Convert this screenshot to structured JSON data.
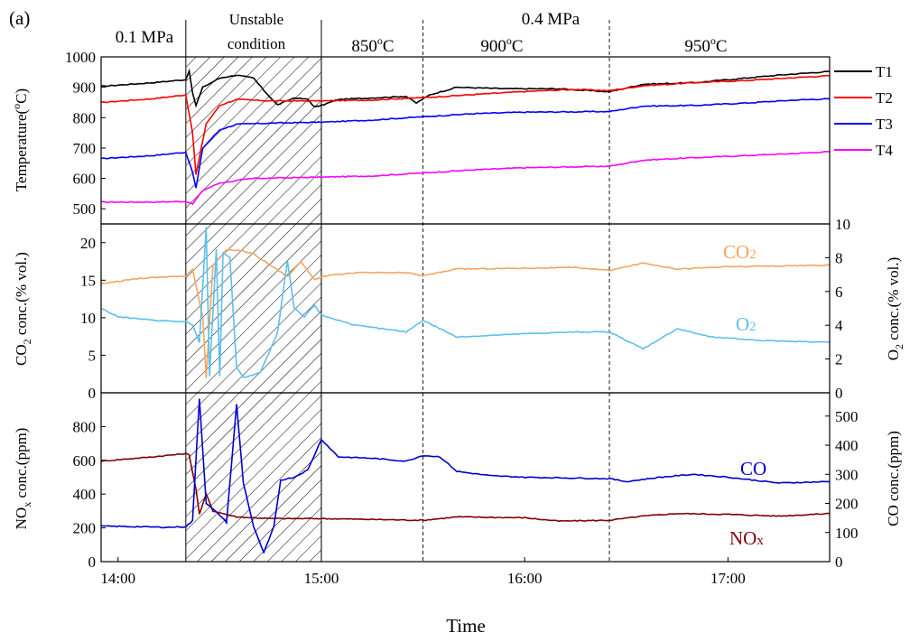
{
  "figure_label": "(a)",
  "chart_data": {
    "type": "line",
    "x_ticks": [
      "14:00",
      "15:00",
      "16:00",
      "17:00"
    ],
    "x_range": [
      "13:55",
      "17:30"
    ],
    "x_label": "Time",
    "header": {
      "pressure_left": "0.1 MPa",
      "unstable_line1": "Unstable",
      "unstable_line2": "condition",
      "pressure_right": "0.4 MPa"
    },
    "phases": [
      {
        "label": "850°C",
        "base": "850",
        "sup": "o",
        "after": "C"
      },
      {
        "label": "900°C",
        "base": "900",
        "sup": "o",
        "after": "C"
      },
      {
        "label": "950°C",
        "base": "950",
        "sup": "o",
        "after": "C"
      }
    ],
    "unstable_region": [
      "14:20",
      "15:00"
    ],
    "phase_boundaries": [
      "15:00",
      "15:30",
      "16:25"
    ],
    "panels": [
      {
        "id": "temperature",
        "ylabel_left": "Temperature(°C)",
        "ylabel_left_parts": {
          "base": "Temperature(",
          "sup": "o",
          "after": "C)"
        },
        "ylim_left": [
          450,
          1000
        ],
        "yticks_left": [
          500,
          600,
          700,
          800,
          900,
          1000
        ],
        "series": [
          {
            "name": "T1",
            "color": "#000000",
            "axis": "left",
            "points": [
              [
                "13:55",
                903
              ],
              [
                "14:10",
                915
              ],
              [
                "14:20",
                925
              ],
              [
                "14:21",
                955
              ],
              [
                "14:22",
                880
              ],
              [
                "14:23",
                840
              ],
              [
                "14:25",
                900
              ],
              [
                "14:30",
                930
              ],
              [
                "14:35",
                940
              ],
              [
                "14:40",
                930
              ],
              [
                "14:43",
                890
              ],
              [
                "14:47",
                842
              ],
              [
                "14:52",
                865
              ],
              [
                "14:56",
                860
              ],
              [
                "14:58",
                835
              ],
              [
                "15:00",
                840
              ],
              [
                "15:05",
                860
              ],
              [
                "15:15",
                865
              ],
              [
                "15:25",
                870
              ],
              [
                "15:28",
                848
              ],
              [
                "15:32",
                875
              ],
              [
                "15:40",
                900
              ],
              [
                "15:55",
                895
              ],
              [
                "16:10",
                895
              ],
              [
                "16:25",
                885
              ],
              [
                "16:35",
                910
              ],
              [
                "16:50",
                915
              ],
              [
                "17:00",
                925
              ],
              [
                "17:15",
                940
              ],
              [
                "17:30",
                952
              ]
            ]
          },
          {
            "name": "T2",
            "color": "#ff0000",
            "axis": "left",
            "points": [
              [
                "13:55",
                850
              ],
              [
                "14:10",
                862
              ],
              [
                "14:20",
                875
              ],
              [
                "14:22",
                750
              ],
              [
                "14:23",
                612
              ],
              [
                "14:26",
                780
              ],
              [
                "14:30",
                840
              ],
              [
                "14:35",
                860
              ],
              [
                "14:45",
                855
              ],
              [
                "15:00",
                855
              ],
              [
                "15:15",
                858
              ],
              [
                "15:30",
                866
              ],
              [
                "15:45",
                876
              ],
              [
                "16:00",
                886
              ],
              [
                "16:15",
                893
              ],
              [
                "16:25",
                889
              ],
              [
                "16:35",
                905
              ],
              [
                "16:50",
                915
              ],
              [
                "17:05",
                922
              ],
              [
                "17:20",
                932
              ],
              [
                "17:30",
                938
              ]
            ]
          },
          {
            "name": "T3",
            "color": "#0000ff",
            "axis": "left",
            "points": [
              [
                "13:55",
                665
              ],
              [
                "14:10",
                675
              ],
              [
                "14:20",
                686
              ],
              [
                "14:22",
                620
              ],
              [
                "14:23",
                568
              ],
              [
                "14:25",
                700
              ],
              [
                "14:30",
                760
              ],
              [
                "14:35",
                778
              ],
              [
                "14:45",
                782
              ],
              [
                "15:00",
                785
              ],
              [
                "15:15",
                792
              ],
              [
                "15:30",
                803
              ],
              [
                "15:45",
                813
              ],
              [
                "16:00",
                818
              ],
              [
                "16:25",
                820
              ],
              [
                "16:35",
                838
              ],
              [
                "16:50",
                840
              ],
              [
                "17:05",
                848
              ],
              [
                "17:20",
                858
              ],
              [
                "17:30",
                862
              ]
            ]
          },
          {
            "name": "T4",
            "color": "#ff00ff",
            "axis": "left",
            "points": [
              [
                "13:55",
                522
              ],
              [
                "14:10",
                522
              ],
              [
                "14:20",
                524
              ],
              [
                "14:22",
                516
              ],
              [
                "14:25",
                560
              ],
              [
                "14:30",
                585
              ],
              [
                "14:40",
                600
              ],
              [
                "15:00",
                604
              ],
              [
                "15:15",
                608
              ],
              [
                "15:30",
                618
              ],
              [
                "15:45",
                628
              ],
              [
                "16:00",
                635
              ],
              [
                "16:25",
                640
              ],
              [
                "16:35",
                660
              ],
              [
                "16:50",
                668
              ],
              [
                "17:05",
                675
              ],
              [
                "17:20",
                682
              ],
              [
                "17:30",
                688
              ]
            ]
          }
        ]
      },
      {
        "id": "gas",
        "ylabel_left": "CO2 conc.(% vol.)",
        "ylabel_right": "O2 conc.(% vol.)",
        "ylim_left": [
          0,
          22.5
        ],
        "yticks_left": [
          0,
          5,
          10,
          15,
          20
        ],
        "ylim_right": [
          0,
          10
        ],
        "yticks_right": [
          0,
          2,
          4,
          6,
          8,
          10
        ],
        "series": [
          {
            "name": "CO2",
            "label": "CO2",
            "color": "#f4a461",
            "axis": "left",
            "points": [
              [
                "13:55",
                14.5
              ],
              [
                "14:05",
                15.2
              ],
              [
                "14:15",
                15.5
              ],
              [
                "14:20",
                15.5
              ],
              [
                "14:22",
                16.5
              ],
              [
                "14:25",
                10
              ],
              [
                "14:26",
                2
              ],
              [
                "14:28",
                17
              ],
              [
                "14:32",
                19
              ],
              [
                "14:36",
                19
              ],
              [
                "14:40",
                18.5
              ],
              [
                "14:45",
                17
              ],
              [
                "14:50",
                15.5
              ],
              [
                "14:54",
                17.5
              ],
              [
                "14:58",
                15
              ],
              [
                "15:00",
                15.5
              ],
              [
                "15:10",
                16
              ],
              [
                "15:25",
                16
              ],
              [
                "15:30",
                15.6
              ],
              [
                "15:40",
                16.5
              ],
              [
                "16:00",
                16.6
              ],
              [
                "16:15",
                16.7
              ],
              [
                "16:25",
                16.3
              ],
              [
                "16:35",
                17.3
              ],
              [
                "16:45",
                16.5
              ],
              [
                "17:00",
                16.8
              ],
              [
                "17:30",
                17
              ]
            ]
          },
          {
            "name": "O2",
            "label": "O2",
            "color": "#5bc0eb",
            "axis": "right",
            "points": [
              [
                "13:55",
                5.0
              ],
              [
                "14:00",
                4.5
              ],
              [
                "14:10",
                4.3
              ],
              [
                "14:20",
                4.2
              ],
              [
                "14:22",
                4.0
              ],
              [
                "14:24",
                3.0
              ],
              [
                "14:26",
                9.8
              ],
              [
                "14:27",
                1.0
              ],
              [
                "14:29",
                8.5
              ],
              [
                "14:30",
                1.0
              ],
              [
                "14:31",
                8.3
              ],
              [
                "14:33",
                8.0
              ],
              [
                "14:35",
                1.5
              ],
              [
                "14:37",
                0.9
              ],
              [
                "14:42",
                1.2
              ],
              [
                "14:47",
                3.5
              ],
              [
                "14:50",
                7.8
              ],
              [
                "14:52",
                5.0
              ],
              [
                "14:55",
                4.5
              ],
              [
                "14:58",
                5.2
              ],
              [
                "15:00",
                4.6
              ],
              [
                "15:10",
                4.0
              ],
              [
                "15:25",
                3.6
              ],
              [
                "15:30",
                4.3
              ],
              [
                "15:40",
                3.3
              ],
              [
                "16:00",
                3.5
              ],
              [
                "16:15",
                3.6
              ],
              [
                "16:25",
                3.6
              ],
              [
                "16:35",
                2.6
              ],
              [
                "16:45",
                3.8
              ],
              [
                "16:55",
                3.3
              ],
              [
                "17:10",
                3.1
              ],
              [
                "17:30",
                3.0
              ]
            ]
          }
        ]
      },
      {
        "id": "emissions",
        "ylabel_left": "NOx conc.(ppm)",
        "ylabel_right": "CO conc.(ppm)",
        "ylim_left": [
          0,
          1000
        ],
        "yticks_left": [
          0,
          200,
          400,
          600,
          800
        ],
        "ylim_right": [
          0,
          580
        ],
        "yticks_right": [
          0,
          100,
          200,
          300,
          400,
          500
        ],
        "series": [
          {
            "name": "NOx",
            "label": "NOx",
            "color": "#800000",
            "axis": "left",
            "points": [
              [
                "13:55",
                595
              ],
              [
                "14:10",
                620
              ],
              [
                "14:20",
                640
              ],
              [
                "14:21",
                630
              ],
              [
                "14:23",
                430
              ],
              [
                "14:24",
                280
              ],
              [
                "14:26",
                400
              ],
              [
                "14:28",
                300
              ],
              [
                "14:35",
                265
              ],
              [
                "14:45",
                255
              ],
              [
                "15:00",
                255
              ],
              [
                "15:15",
                250
              ],
              [
                "15:30",
                245
              ],
              [
                "15:40",
                265
              ],
              [
                "16:00",
                260
              ],
              [
                "16:10",
                240
              ],
              [
                "16:25",
                245
              ],
              [
                "16:35",
                270
              ],
              [
                "16:45",
                285
              ],
              [
                "17:00",
                280
              ],
              [
                "17:15",
                270
              ],
              [
                "17:30",
                285
              ]
            ]
          },
          {
            "name": "CO",
            "label": "CO",
            "color": "#0000cd",
            "axis": "right",
            "points": [
              [
                "13:55",
                122
              ],
              [
                "14:05",
                120
              ],
              [
                "14:15",
                118
              ],
              [
                "14:20",
                120
              ],
              [
                "14:22",
                140
              ],
              [
                "14:24",
                560
              ],
              [
                "14:26",
                200
              ],
              [
                "14:30",
                160
              ],
              [
                "14:32",
                135
              ],
              [
                "14:35",
                540
              ],
              [
                "14:37",
                270
              ],
              [
                "14:40",
                120
              ],
              [
                "14:43",
                30
              ],
              [
                "14:46",
                120
              ],
              [
                "14:48",
                280
              ],
              [
                "14:52",
                290
              ],
              [
                "14:56",
                315
              ],
              [
                "15:00",
                420
              ],
              [
                "15:05",
                360
              ],
              [
                "15:15",
                355
              ],
              [
                "15:25",
                345
              ],
              [
                "15:30",
                365
              ],
              [
                "15:35",
                360
              ],
              [
                "15:40",
                310
              ],
              [
                "15:50",
                295
              ],
              [
                "16:00",
                290
              ],
              [
                "16:25",
                285
              ],
              [
                "16:30",
                275
              ],
              [
                "16:40",
                290
              ],
              [
                "16:50",
                300
              ],
              [
                "17:00",
                290
              ],
              [
                "17:15",
                270
              ],
              [
                "17:30",
                275
              ]
            ]
          }
        ]
      }
    ],
    "legend": {
      "items": [
        "T1",
        "T2",
        "T3",
        "T4"
      ],
      "placement": "right"
    },
    "grid": false
  }
}
